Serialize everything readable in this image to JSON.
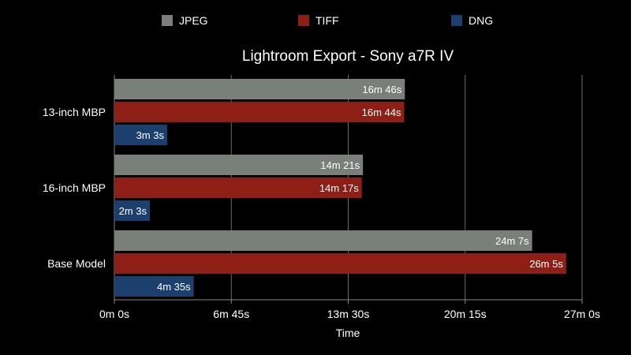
{
  "chart_data": {
    "type": "bar",
    "orientation": "horizontal",
    "title": "Lightroom Export - Sony a7R IV",
    "xlabel": "Time",
    "ylabel": "",
    "categories": [
      "13-inch MBP",
      "16-inch MBP",
      "Base Model"
    ],
    "series": [
      {
        "name": "JPEG",
        "color": "#7a7f7b",
        "values": [
          1006,
          861,
          1447
        ],
        "labels": [
          "16m 46s",
          "14m 21s",
          "24m 7s"
        ]
      },
      {
        "name": "TIFF",
        "color": "#8e1f17",
        "values": [
          1004,
          857,
          1565
        ],
        "labels": [
          "16m 44s",
          "14m 17s",
          "26m 5s"
        ]
      },
      {
        "name": "DNG",
        "color": "#1c3f6e",
        "values": [
          183,
          123,
          275
        ],
        "labels": [
          "3m 3s",
          "2m 3s",
          "4m 35s"
        ]
      }
    ],
    "value_unit": "seconds",
    "xlim": [
      0,
      1620
    ],
    "xticks": [
      0,
      405,
      810,
      1215,
      1620
    ],
    "xtick_labels": [
      "0m 0s",
      "6m 45s",
      "13m 30s",
      "20m 15s",
      "27m 0s"
    ],
    "grid": true,
    "legend_position": "top"
  }
}
